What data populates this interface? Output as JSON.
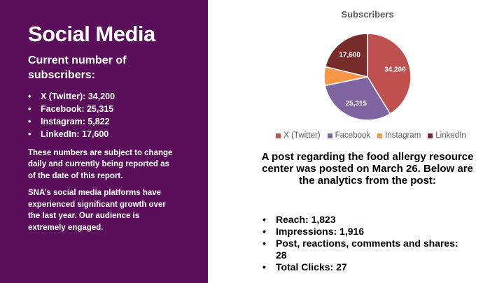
{
  "left": {
    "title": "Social Media",
    "subtitle": "Current number of subscribers:",
    "subscribers": [
      "X (Twitter): 34,200",
      "Facebook: 25,315",
      "Instagram: 5,822",
      "LinkedIn: 17,600"
    ],
    "note1": "These numbers are subject to change daily and currently being reported as of the date of this report.",
    "note2": "SNA’s social media platforms have experienced significant growth over the last year. Our audience is extremely engaged."
  },
  "chart_data": {
    "type": "pie",
    "title": "Subscribers",
    "categories": [
      "X (Twitter)",
      "Facebook",
      "Instagram",
      "LinkedIn"
    ],
    "values": [
      34200,
      25315,
      5822,
      17600
    ],
    "data_labels": [
      "34,200",
      "25,315",
      "",
      "17,600"
    ],
    "colors": [
      "#c0504d",
      "#8064a2",
      "#f79646",
      "#772c2a"
    ],
    "legend_position": "bottom"
  },
  "post": {
    "heading": "A post regarding the food allergy resource center was posted on March 26. Below are the analytics from the post:",
    "analytics": [
      "Reach: 1,823",
      "Impressions: 1,916",
      "Post, reactions, comments and shares: 28",
      "Total Clicks: 27"
    ]
  }
}
